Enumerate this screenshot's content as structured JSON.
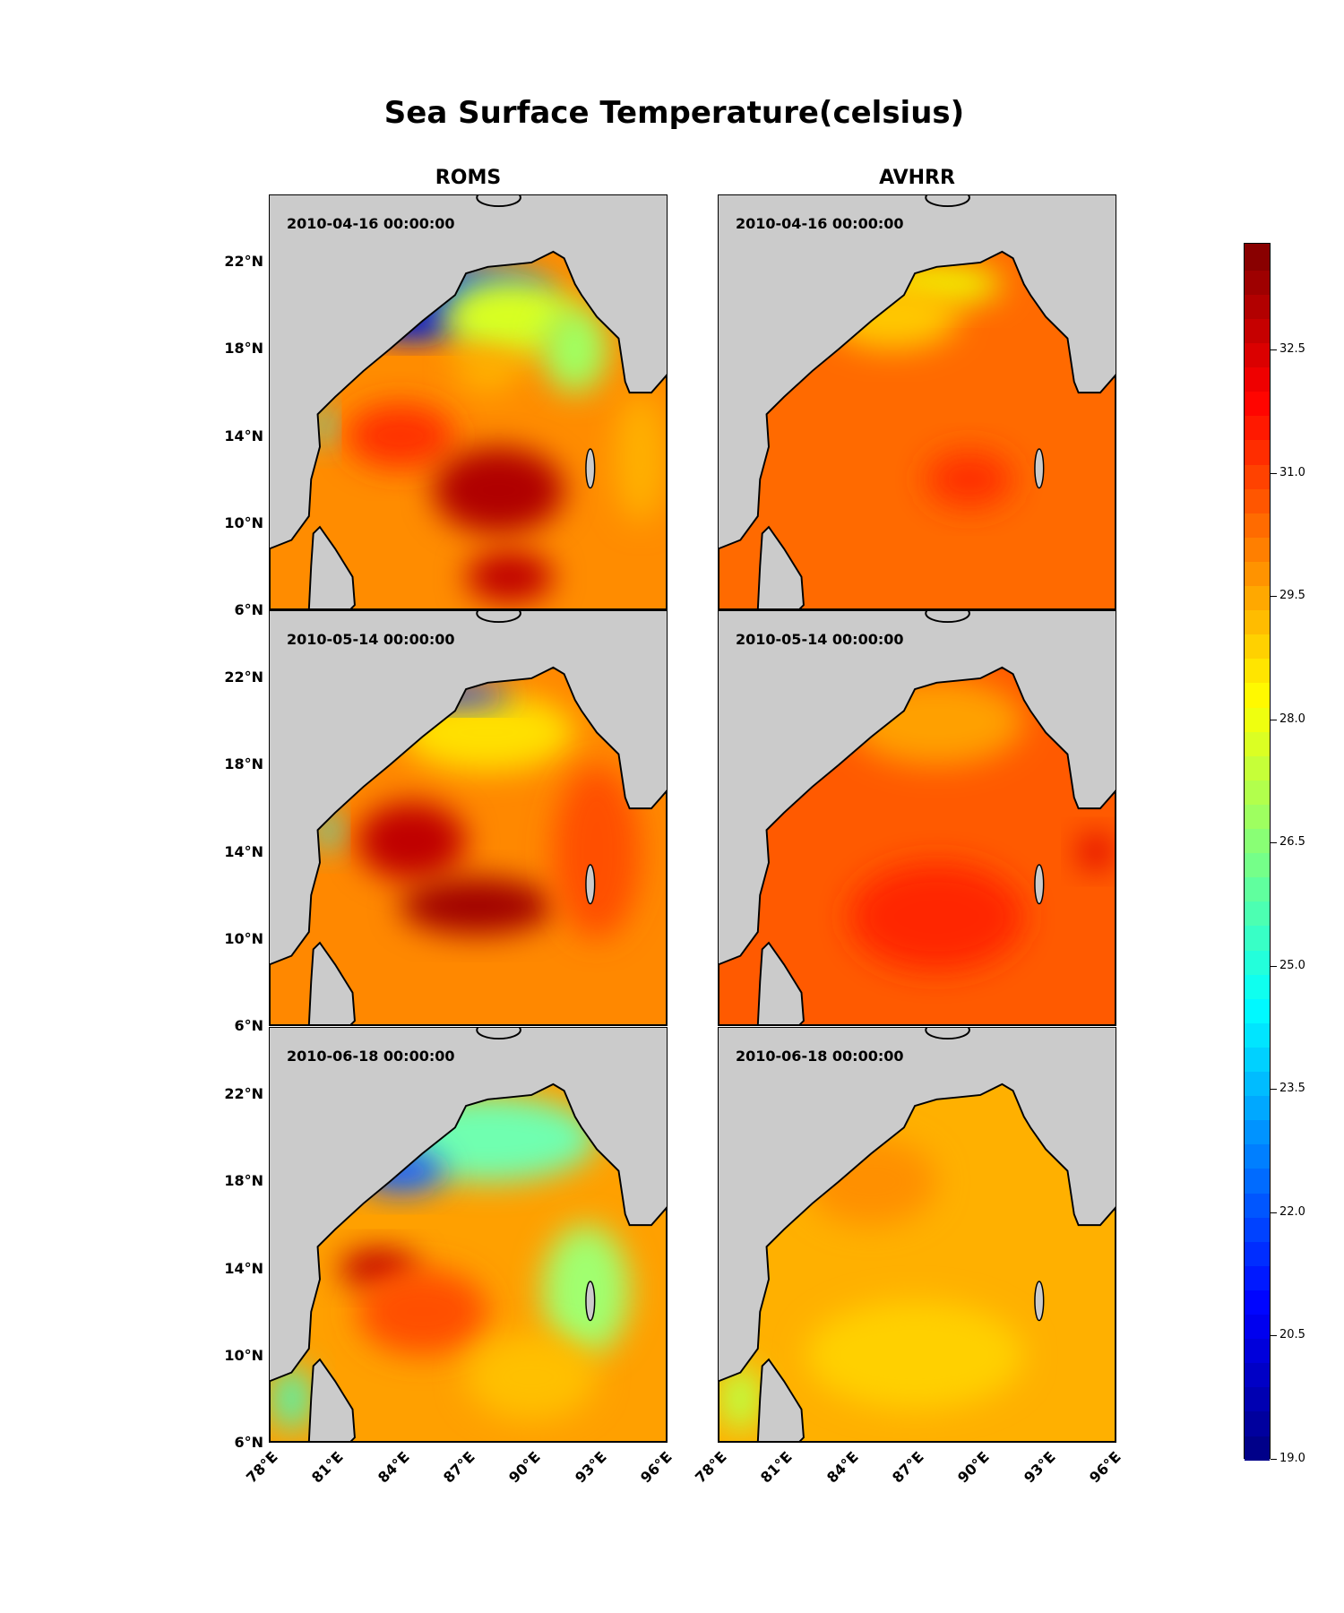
{
  "chart_data": {
    "type": "heatmap",
    "title": "Sea Surface Temperature(celsius)",
    "columns": [
      "ROMS",
      "AVHRR"
    ],
    "dates": [
      "2010-04-16 00:00:00",
      "2010-05-14 00:00:00",
      "2010-06-18 00:00:00"
    ],
    "lat_ticks": [
      "6°N",
      "10°N",
      "14°N",
      "18°N",
      "22°N"
    ],
    "lat_values": [
      6,
      10,
      14,
      18,
      22
    ],
    "lon_ticks": [
      "78°E",
      "81°E",
      "84°E",
      "87°E",
      "90°E",
      "93°E",
      "96°E"
    ],
    "lon_values": [
      78,
      81,
      84,
      87,
      90,
      93,
      96
    ],
    "lon_range": [
      78,
      96.2
    ],
    "lat_range": [
      6,
      25.1
    ],
    "colorbar": {
      "ticks": [
        "19.0",
        "20.5",
        "22.0",
        "23.5",
        "25.0",
        "26.5",
        "28.0",
        "29.5",
        "31.0",
        "32.5"
      ],
      "tick_values": [
        19.0,
        20.5,
        22.0,
        23.5,
        25.0,
        26.5,
        28.0,
        29.5,
        31.0,
        32.5
      ],
      "range": [
        19.0,
        33.8
      ],
      "colormap": "jet"
    }
  }
}
